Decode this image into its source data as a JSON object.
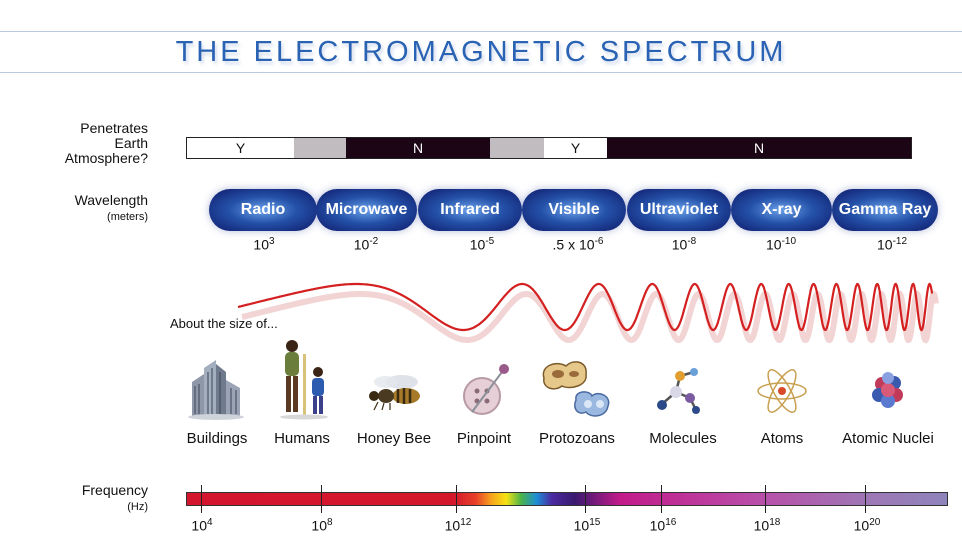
{
  "title": "THE ELECTROMAGNETIC SPECTRUM",
  "atmosphere": {
    "label_lines": [
      "Penetrates",
      "Earth",
      "Atmosphere?"
    ],
    "segments": [
      {
        "text": "Y",
        "color": "#ffffff"
      },
      {
        "text": "",
        "color": "#c0bcc0"
      },
      {
        "text": "N",
        "color": "#1c0616"
      },
      {
        "text": "",
        "color": "#c0bcc0"
      },
      {
        "text": "Y",
        "color": "#ffffff"
      },
      {
        "text": "N",
        "color": "#1c0616"
      }
    ]
  },
  "wavelength": {
    "label": "Wavelength",
    "unit": "(meters)",
    "bands": [
      "Radio",
      "Microwave",
      "Infrared",
      "Visible",
      "Ultraviolet",
      "X-ray",
      "Gamma Ray"
    ],
    "values": [
      {
        "base": "10",
        "exp": "3"
      },
      {
        "base": "10",
        "exp": "-2"
      },
      {
        "base": "10",
        "exp": "-5"
      },
      {
        "base": ".5 x 10",
        "exp": "-6"
      },
      {
        "base": "10",
        "exp": "-8"
      },
      {
        "base": "10",
        "exp": "-10"
      },
      {
        "base": "10",
        "exp": "-12"
      }
    ]
  },
  "size_label": "About the size of...",
  "objects": [
    {
      "label": "Buildings",
      "icon": "buildings-icon"
    },
    {
      "label": "Humans",
      "icon": "humans-icon"
    },
    {
      "label": "Honey Bee",
      "icon": "honey-bee-icon"
    },
    {
      "label": "Pinpoint",
      "icon": "pinpoint-icon"
    },
    {
      "label": "Protozoans",
      "icon": "protozoans-icon"
    },
    {
      "label": "Molecules",
      "icon": "molecules-icon"
    },
    {
      "label": "Atoms",
      "icon": "atoms-icon"
    },
    {
      "label": "Atomic Nuclei",
      "icon": "atomic-nuclei-icon"
    }
  ],
  "frequency": {
    "label": "Frequency",
    "unit": "(Hz)",
    "ticks": [
      {
        "base": "10",
        "exp": "4"
      },
      {
        "base": "10",
        "exp": "8"
      },
      {
        "base": "10",
        "exp": "12"
      },
      {
        "base": "10",
        "exp": "15"
      },
      {
        "base": "10",
        "exp": "16"
      },
      {
        "base": "10",
        "exp": "18"
      },
      {
        "base": "10",
        "exp": "20"
      }
    ]
  },
  "colors": {
    "title": "#2a63b3",
    "wave": "#d42020",
    "band": "#2451a8"
  }
}
